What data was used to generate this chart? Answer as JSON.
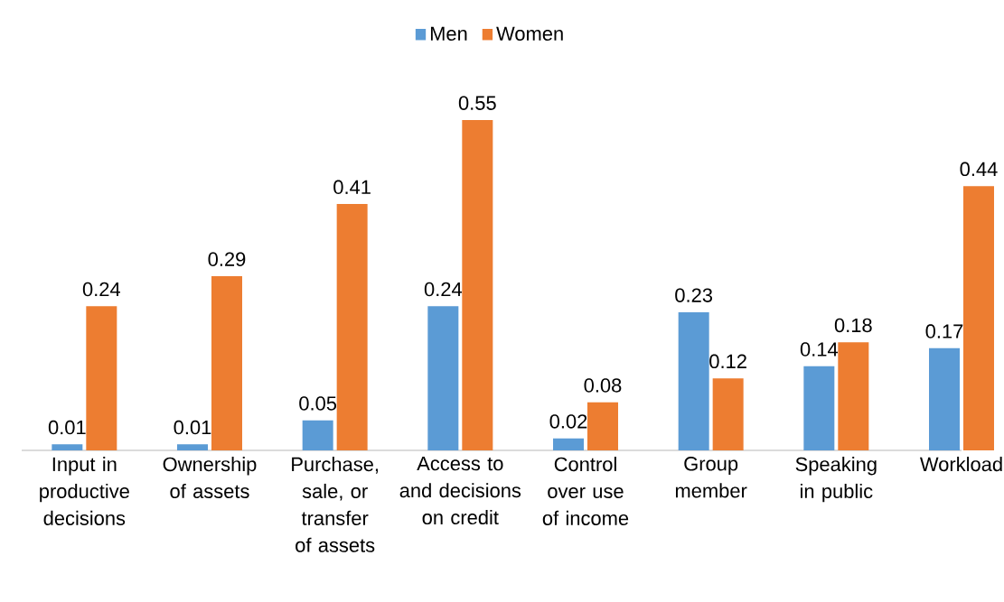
{
  "chart_data": {
    "type": "bar",
    "categories": [
      "Input in productive decisions",
      "Ownership of assets",
      "Purchase, sale, or transfer of assets",
      "Access to and decisions on credit",
      "Control over use of income",
      "Group member",
      "Speaking in public",
      "Workload"
    ],
    "series": [
      {
        "name": "Men",
        "color": "#5b9bd5",
        "values": [
          0.01,
          0.01,
          0.05,
          0.24,
          0.02,
          0.23,
          0.14,
          0.17
        ]
      },
      {
        "name": "Women",
        "color": "#ed7d31",
        "values": [
          0.24,
          0.29,
          0.41,
          0.55,
          0.08,
          0.12,
          0.18,
          0.44
        ]
      }
    ],
    "data_labels": true,
    "legend": "top"
  }
}
